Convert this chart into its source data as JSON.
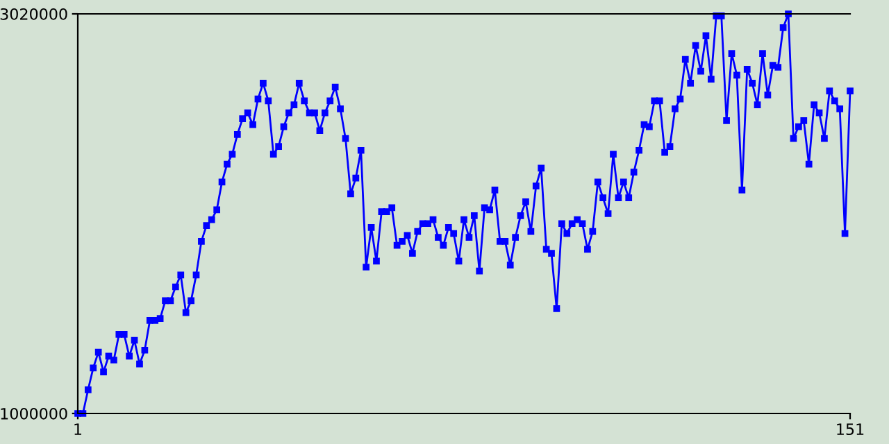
{
  "chart_data": {
    "type": "line",
    "x": [
      1,
      2,
      3,
      4,
      5,
      6,
      7,
      8,
      9,
      10,
      11,
      12,
      13,
      14,
      15,
      16,
      17,
      18,
      19,
      20,
      21,
      22,
      23,
      24,
      25,
      26,
      27,
      28,
      29,
      30,
      31,
      32,
      33,
      34,
      35,
      36,
      37,
      38,
      39,
      40,
      41,
      42,
      43,
      44,
      45,
      46,
      47,
      48,
      49,
      50,
      51,
      52,
      53,
      54,
      55,
      56,
      57,
      58,
      59,
      60,
      61,
      62,
      63,
      64,
      65,
      66,
      67,
      68,
      69,
      70,
      71,
      72,
      73,
      74,
      75,
      76,
      77,
      78,
      79,
      80,
      81,
      82,
      83,
      84,
      85,
      86,
      87,
      88,
      89,
      90,
      91,
      92,
      93,
      94,
      95,
      96,
      97,
      98,
      99,
      100,
      101,
      102,
      103,
      104,
      105,
      106,
      107,
      108,
      109,
      110,
      111,
      112,
      113,
      114,
      115,
      116,
      117,
      118,
      119,
      120,
      121,
      122,
      123,
      124,
      125,
      126,
      127,
      128,
      129,
      130,
      131,
      132,
      133,
      134,
      135,
      136,
      137,
      138,
      139,
      140,
      141,
      142,
      143,
      144,
      145,
      146,
      147,
      148,
      149,
      150,
      151
    ],
    "series": [
      {
        "color": "#0000ff",
        "values": [
          1000000,
          1000000,
          1120000,
          1230000,
          1310000,
          1210000,
          1290000,
          1270000,
          1400000,
          1400000,
          1290000,
          1370000,
          1250000,
          1320000,
          1470000,
          1470000,
          1480000,
          1570000,
          1570000,
          1640000,
          1700000,
          1510000,
          1570000,
          1700000,
          1870000,
          1950000,
          1980000,
          2030000,
          2170000,
          2260000,
          2310000,
          2410000,
          2490000,
          2520000,
          2460000,
          2590000,
          2670000,
          2580000,
          2310000,
          2350000,
          2450000,
          2520000,
          2560000,
          2670000,
          2580000,
          2520000,
          2520000,
          2430000,
          2520000,
          2580000,
          2650000,
          2540000,
          2390000,
          2110000,
          2190000,
          2330000,
          1740000,
          1940000,
          1770000,
          2020000,
          2020000,
          2040000,
          1850000,
          1870000,
          1900000,
          1810000,
          1920000,
          1960000,
          1960000,
          1980000,
          1890000,
          1850000,
          1940000,
          1910000,
          1770000,
          1980000,
          1890000,
          2000000,
          1720000,
          2040000,
          2030000,
          2130000,
          1870000,
          1870000,
          1750000,
          1890000,
          2000000,
          2070000,
          1920000,
          2150000,
          2240000,
          1830000,
          1810000,
          1530000,
          1960000,
          1910000,
          1960000,
          1980000,
          1960000,
          1830000,
          1920000,
          2170000,
          2090000,
          2010000,
          2310000,
          2090000,
          2170000,
          2090000,
          2220000,
          2330000,
          2460000,
          2450000,
          2580000,
          2580000,
          2320000,
          2350000,
          2540000,
          2590000,
          2790000,
          2670000,
          2860000,
          2730000,
          2910000,
          2690000,
          3010000,
          3010000,
          2480000,
          2820000,
          2710000,
          2130000,
          2740000,
          2670000,
          2560000,
          2820000,
          2610000,
          2760000,
          2750000,
          2950000,
          3020000,
          2390000,
          2450000,
          2480000,
          2260000,
          2560000,
          2520000,
          2390000,
          2630000,
          2580000,
          2540000,
          1910000,
          2630000
        ]
      }
    ],
    "xlim": [
      1,
      151
    ],
    "xticks": [
      1,
      151
    ],
    "ylim": [
      1000000,
      3020000
    ],
    "yticks": [
      1000000,
      3020000
    ],
    "grid": false,
    "legend": false,
    "marker": "square",
    "line_style": "solid"
  }
}
